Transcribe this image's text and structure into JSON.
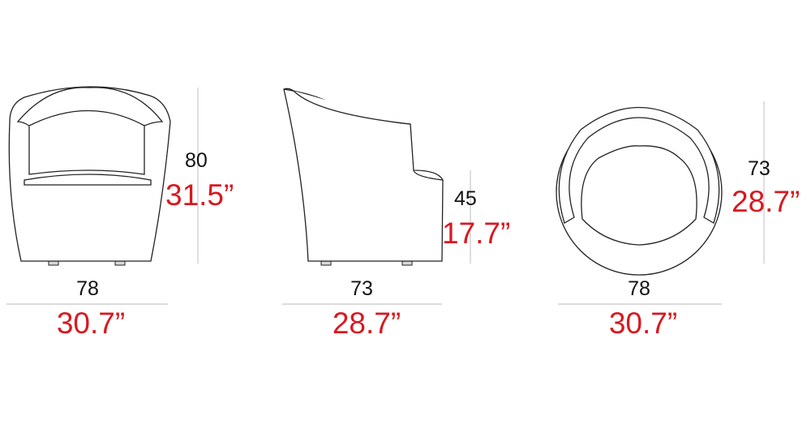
{
  "views": [
    {
      "width": {
        "cm": "78",
        "inch": "30.7”"
      },
      "height": {
        "cm": "80",
        "inch": "31.5”"
      }
    },
    {
      "width": {
        "cm": "73",
        "inch": "28.7”"
      },
      "height": {
        "cm": "45",
        "inch": "17.7”"
      }
    },
    {
      "width": {
        "cm": "78",
        "inch": "30.7”"
      },
      "height": {
        "cm": "73",
        "inch": "28.7”"
      }
    }
  ]
}
